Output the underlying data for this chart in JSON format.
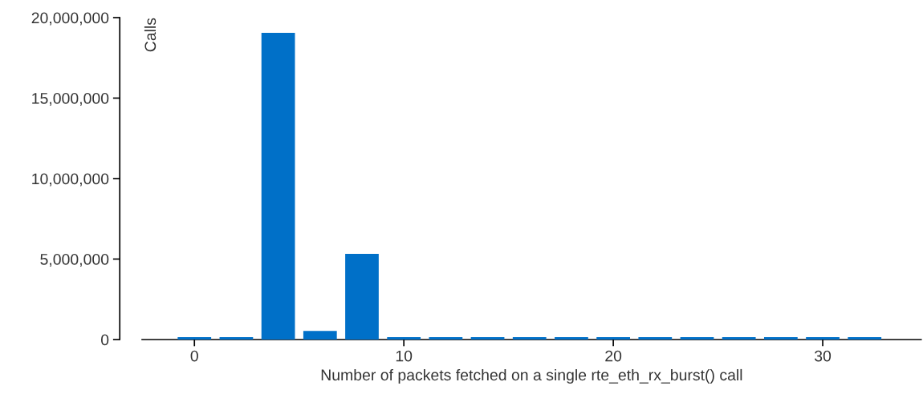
{
  "chart_data": {
    "type": "bar",
    "xlabel": "Number of packets fetched on a single rte_eth_rx_burst() call",
    "ylabel": "Calls",
    "x": [
      0,
      2,
      4,
      6,
      8,
      10,
      12,
      14,
      16,
      18,
      20,
      22,
      24,
      26,
      28,
      30,
      32
    ],
    "values": [
      150000,
      150000,
      19050000,
      530000,
      5320000,
      150000,
      150000,
      150000,
      150000,
      150000,
      150000,
      150000,
      150000,
      150000,
      150000,
      150000,
      150000
    ],
    "color": "#0070c8",
    "xlim": [
      -2.5,
      34.7
    ],
    "xticks": [
      0,
      10,
      20,
      30
    ],
    "ylim": [
      0,
      20000000
    ],
    "yticks": [
      {
        "value": 0,
        "label": "0"
      },
      {
        "value": 5000000,
        "label": "5,000,000"
      },
      {
        "value": 10000000,
        "label": "10,000,000"
      },
      {
        "value": 15000000,
        "label": "15,000,000"
      },
      {
        "value": 20000000,
        "label": "20,000,000"
      }
    ],
    "grid": false,
    "legend": false
  }
}
